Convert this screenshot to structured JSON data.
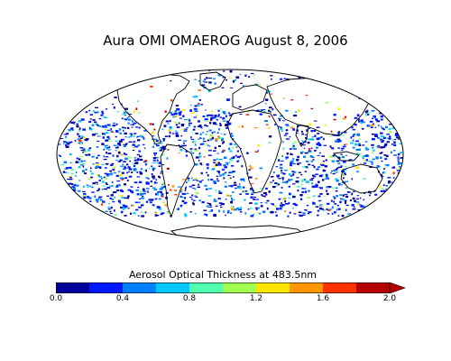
{
  "title": "Aura OMI OMAEROG August 8, 2006",
  "map": {
    "projection": "mollweide",
    "variable": "Aerosol Optical Thickness",
    "colors": {
      "land_outline": "#000000",
      "background": "#ffffff"
    }
  },
  "colorbar": {
    "label": "Aerosol Optical Thickness at 483.5nm",
    "vmin": 0.0,
    "vmax": 2.0,
    "extend": "max",
    "colors": [
      "#00009a",
      "#0019ff",
      "#0080ff",
      "#00c8ff",
      "#50ffb0",
      "#a0ff50",
      "#ffe600",
      "#ff9600",
      "#ff3200",
      "#b40000"
    ],
    "ticks": [
      {
        "value": 0.0,
        "label": "0.0"
      },
      {
        "value": 0.4,
        "label": "0.4"
      },
      {
        "value": 0.8,
        "label": "0.8"
      },
      {
        "value": 1.2,
        "label": "1.2"
      },
      {
        "value": 1.6,
        "label": "1.6"
      },
      {
        "value": 2.0,
        "label": "2.0"
      }
    ]
  }
}
